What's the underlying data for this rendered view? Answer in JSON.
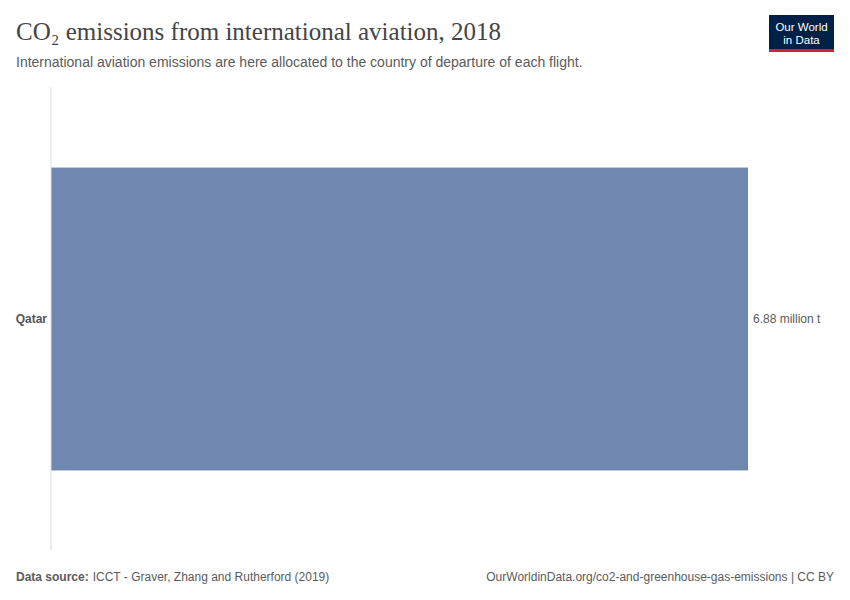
{
  "chart_data": {
    "type": "bar",
    "title": "CO₂ emissions from international aviation, 2018",
    "subtitle": "International aviation emissions are here allocated to the country of departure of each flight.",
    "source_label": "Data source:",
    "source": "ICCT - Graver, Zhang and Rutherford (2019)",
    "footer": "OurWorldinData.org/co2-and-greenhouse-gas-emissions | CC BY",
    "logo": [
      "Our World",
      "in Data"
    ],
    "categories": [
      "Qatar"
    ],
    "values": [
      6.88
    ],
    "value_labels": [
      "6.88 million t"
    ],
    "color": "#7088b0",
    "orientation": "horizontal",
    "xlim": [
      0,
      6.88
    ],
    "data_labels": true,
    "tick_labels": "y"
  }
}
